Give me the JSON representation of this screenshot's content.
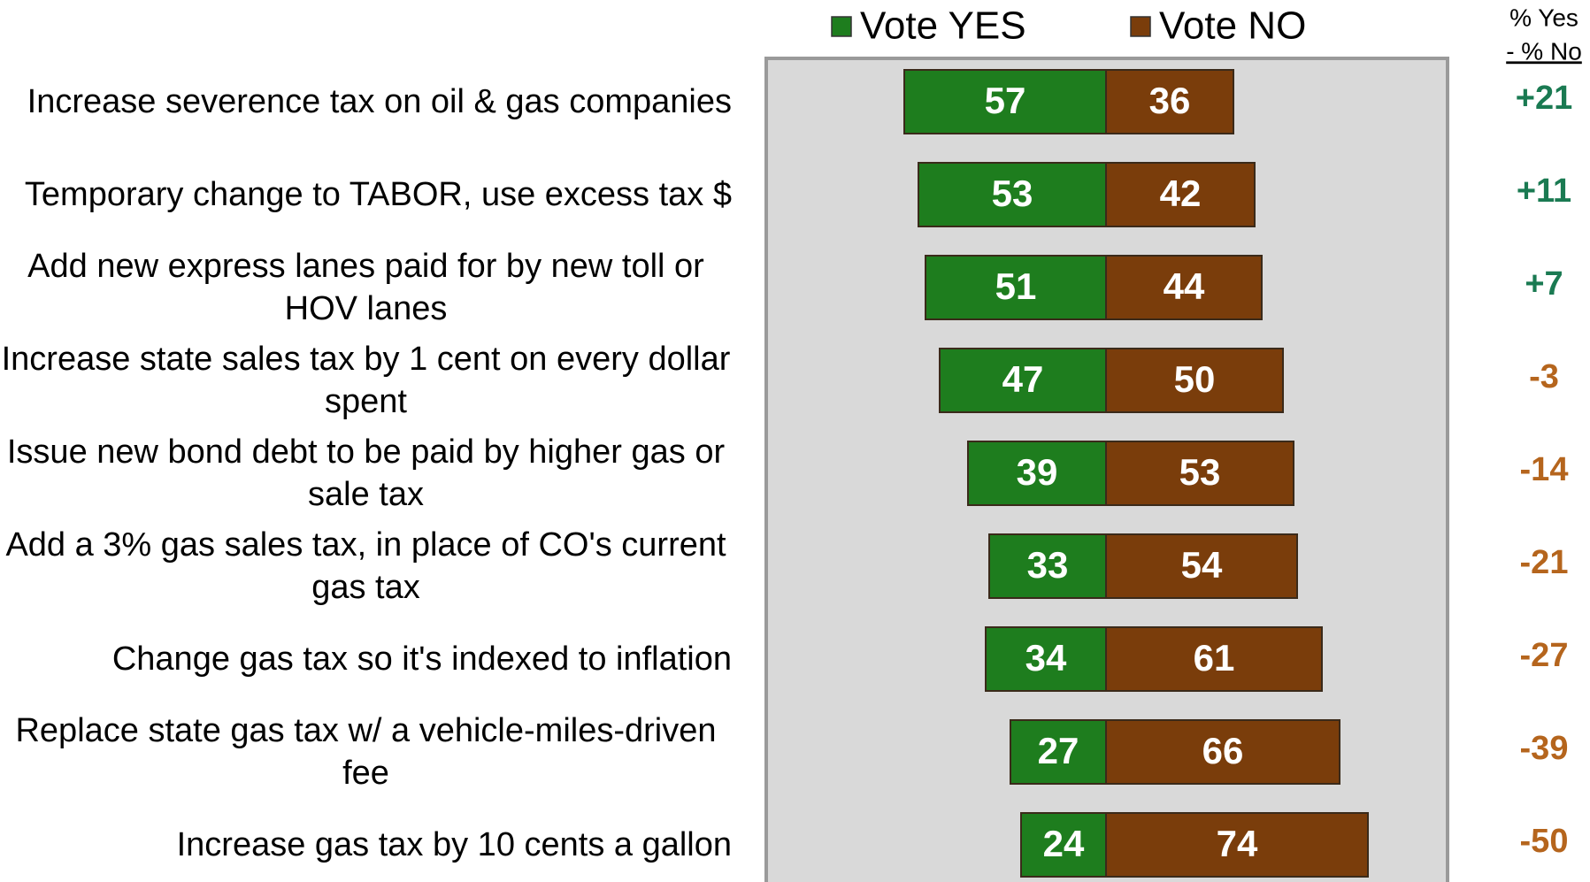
{
  "chart_data": {
    "type": "bar",
    "orientation": "horizontal",
    "layout": "diverging",
    "categories": [
      "Increase severence tax on oil & gas companies",
      "Temporary change to TABOR, use excess tax $",
      "Add new express lanes paid for by new toll or HOV lanes",
      "Increase state sales tax by 1 cent on every dollar spent",
      "Issue new bond debt to be paid by higher gas or sale tax",
      "Add a 3% gas sales tax, in place of CO's current gas tax",
      "Change gas tax so it's indexed to inflation",
      "Replace state gas tax w/ a vehicle-miles-driven fee",
      "Increase gas tax by 10 cents a gallon"
    ],
    "series": [
      {
        "name": "Vote YES",
        "color": "#1e7d1e",
        "side": "left",
        "values": [
          57,
          53,
          51,
          47,
          39,
          33,
          34,
          27,
          24
        ]
      },
      {
        "name": "Vote NO",
        "color": "#7a3d0b",
        "side": "right",
        "values": [
          36,
          42,
          44,
          50,
          53,
          54,
          61,
          66,
          74
        ]
      }
    ],
    "net": {
      "title": [
        "% Yes",
        "- % No"
      ],
      "values": [
        21,
        11,
        7,
        -3,
        -14,
        -21,
        -27,
        -39,
        -50
      ],
      "value_labels": [
        "+21",
        "+11",
        "+7",
        "-3",
        "-14",
        "-21",
        "-27",
        "-39",
        "-50"
      ],
      "colors": {
        "positive": "#1a7a52",
        "negative": "#b5651d"
      }
    },
    "legend": "top"
  }
}
